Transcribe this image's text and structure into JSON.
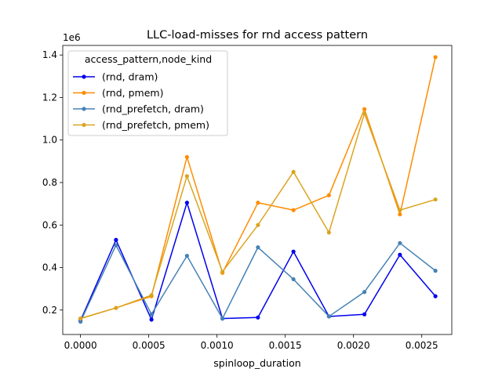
{
  "chart_data": {
    "type": "line",
    "title": "LLC-load-misses for rnd access pattern",
    "xlabel": "spinloop_duration",
    "ylabel": "",
    "y_offset_label": "1e6",
    "xlim": [
      -0.00013,
      0.00272
    ],
    "ylim": [
      0.085,
      1.445
    ],
    "x_ticks": [
      0.0,
      0.0005,
      0.001,
      0.0015,
      0.002,
      0.0025
    ],
    "x_tick_labels": [
      "0.0000",
      "0.0005",
      "0.0010",
      "0.0015",
      "0.0020",
      "0.0025"
    ],
    "y_ticks": [
      0.2,
      0.4,
      0.6,
      0.8,
      1.0,
      1.2,
      1.4
    ],
    "y_tick_labels": [
      "0.2",
      "0.4",
      "0.6",
      "0.8",
      "1.0",
      "1.2",
      "1.4"
    ],
    "grid": false,
    "legend": {
      "title": "access_pattern,node_kind",
      "placement": "top-left"
    },
    "x": [
      0.0,
      0.00026,
      0.00052,
      0.00078,
      0.00104,
      0.0013,
      0.00156,
      0.00182,
      0.00208,
      0.00234,
      0.0026
    ],
    "series": [
      {
        "name": "(rnd, dram)",
        "color": "#0000ee",
        "values": [
          0.15,
          0.53,
          0.155,
          0.705,
          0.16,
          0.165,
          0.475,
          0.17,
          0.18,
          0.46,
          0.265
        ]
      },
      {
        "name": "(rnd, pmem)",
        "color": "#ff8c00",
        "values": [
          0.16,
          0.21,
          0.265,
          0.92,
          0.375,
          0.705,
          0.67,
          0.74,
          1.145,
          0.65,
          1.39
        ]
      },
      {
        "name": "(rnd_prefetch, dram)",
        "color": "#4682b4",
        "values": [
          0.145,
          0.505,
          0.18,
          0.455,
          0.16,
          0.495,
          0.345,
          0.17,
          0.285,
          0.515,
          0.385
        ]
      },
      {
        "name": "(rnd_prefetch, pmem)",
        "color": "#daa520",
        "values": [
          0.16,
          0.21,
          0.27,
          0.83,
          0.38,
          0.6,
          0.85,
          0.565,
          1.125,
          0.67,
          0.72
        ]
      }
    ]
  }
}
